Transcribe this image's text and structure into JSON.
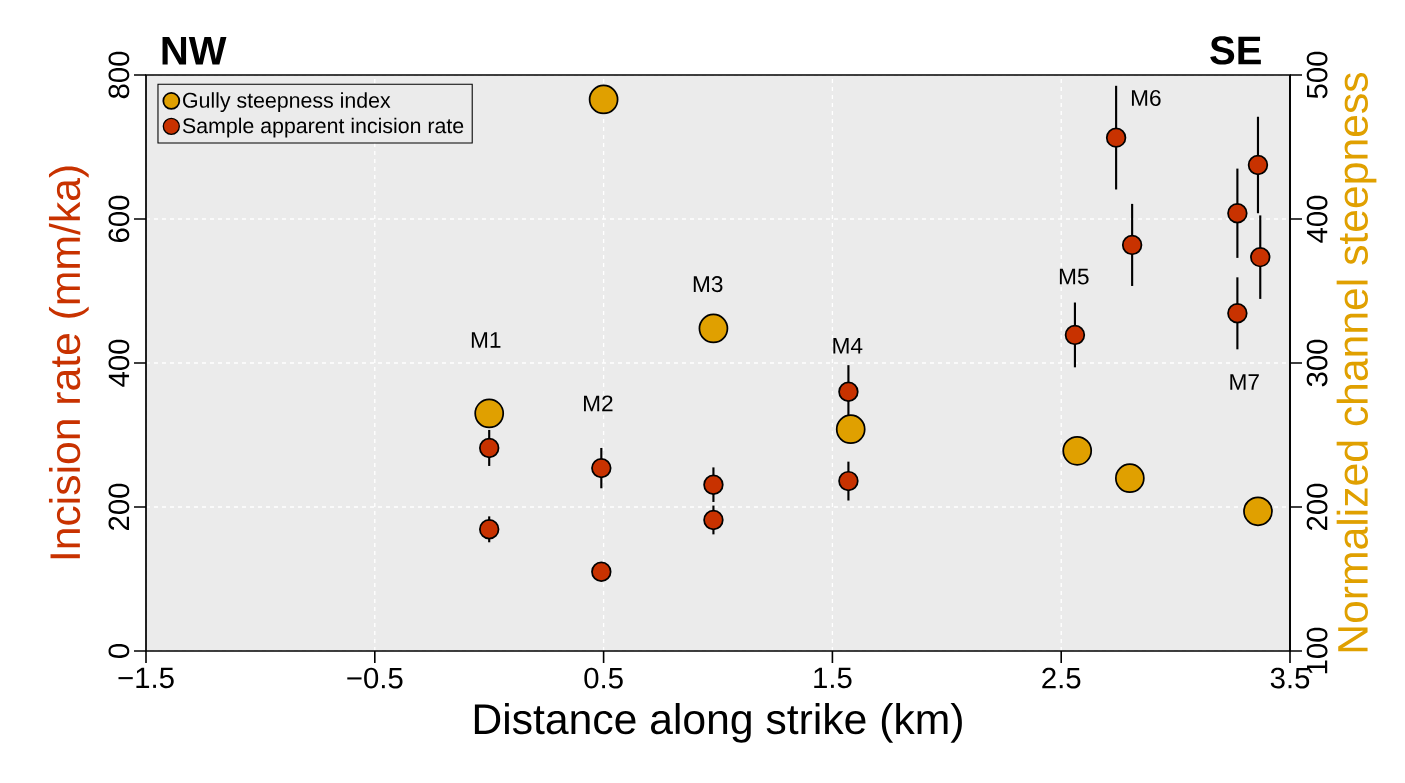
{
  "chart_data": {
    "type": "scatter",
    "xlabel": "Distance along strike (km)",
    "ylabel": "Incision rate (mm/ka)",
    "y2label": "Normalized channel steepness",
    "series": [
      {
        "name": "Gully steepness index",
        "color": "#e0a000",
        "axis": "y2",
        "x": [
          0.0,
          0.5,
          0.98,
          1.58,
          2.57,
          2.8,
          3.36
        ],
        "values": [
          265,
          483,
          324,
          254,
          239,
          220,
          197
        ]
      },
      {
        "name": "Sample apparent incision rate",
        "color": "#c83200",
        "x": [
          0.0,
          0.0,
          0.49,
          0.49,
          0.98,
          0.98,
          1.57,
          1.57,
          2.56,
          2.74,
          2.81,
          3.27,
          3.27,
          3.36,
          3.37
        ],
        "values": [
          282,
          169,
          254,
          110,
          231,
          182,
          360,
          236,
          439,
          713,
          564,
          469,
          608,
          675,
          547
        ],
        "errors": [
          25,
          18,
          28,
          12,
          24,
          20,
          37,
          27,
          45,
          72,
          57,
          50,
          62,
          67,
          58
        ]
      }
    ],
    "annotations": [
      "NW",
      "SE",
      "M1",
      "M2",
      "M3",
      "M4",
      "M5",
      "M6",
      "M7"
    ],
    "xlim": [
      -1.5,
      3.5
    ],
    "xticks": [
      {
        "value": -1.5,
        "label": "−1.5"
      },
      {
        "value": -0.5,
        "label": "−0.5"
      },
      0.5,
      1.5,
      2.5,
      3.5
    ],
    "ylim": [
      0,
      800
    ],
    "yticks": [
      0,
      200,
      400,
      600,
      800
    ],
    "y2lim": [
      100,
      500
    ],
    "y2ticks": [
      100,
      200,
      300,
      400,
      500
    ],
    "grid": true,
    "legend": "top left"
  }
}
